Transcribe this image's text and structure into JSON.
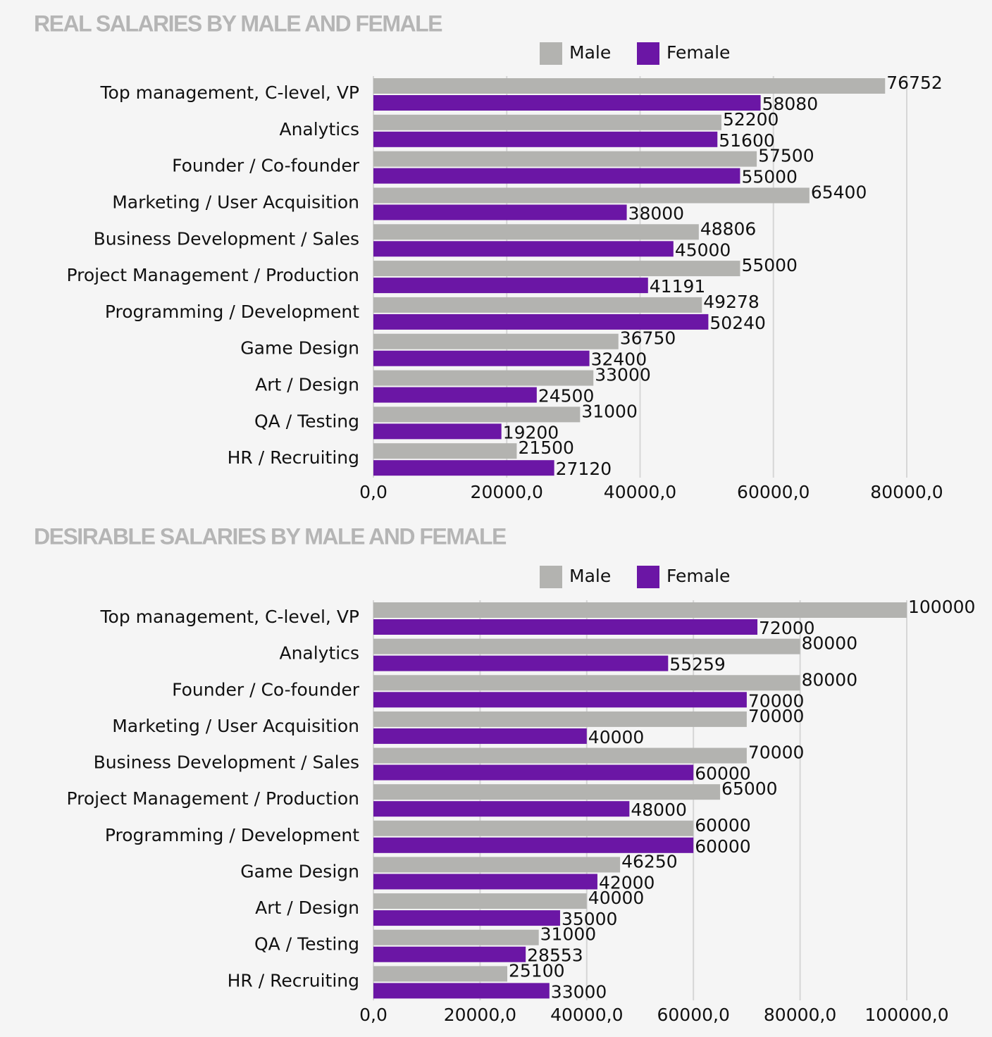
{
  "chart_data": [
    {
      "type": "bar",
      "orientation": "horizontal",
      "title": "REAL SALARIES BY MALE AND FEMALE",
      "categories": [
        "Top management, C-level, VP",
        "Analytics",
        "Founder / Co-founder",
        "Marketing / User Acquisition",
        "Business Development / Sales",
        "Project Management / Production",
        "Programming / Development",
        "Game Design",
        "Art / Design",
        "QA / Testing",
        "HR / Recruiting"
      ],
      "series": [
        {
          "name": "Male",
          "color": "#b3b3b0",
          "values": [
            76752,
            52200,
            57500,
            65400,
            48806,
            55000,
            49278,
            36750,
            33000,
            31000,
            21500
          ]
        },
        {
          "name": "Female",
          "color": "#6b16a5",
          "values": [
            58080,
            51600,
            55000,
            38000,
            45000,
            41191,
            50240,
            32400,
            24500,
            19200,
            27120
          ]
        }
      ],
      "xlim": [
        0,
        80000
      ],
      "xticks": [
        {
          "value": 0,
          "label": "0,0"
        },
        {
          "value": 20000,
          "label": "20000,0"
        },
        {
          "value": 40000,
          "label": "40000,0"
        },
        {
          "value": 60000,
          "label": "60000,0"
        },
        {
          "value": 80000,
          "label": "80000,0"
        }
      ],
      "grid": true,
      "legend": "top"
    },
    {
      "type": "bar",
      "orientation": "horizontal",
      "title": "DESIRABLE SALARIES BY MALE AND FEMALE",
      "categories": [
        "Top management, C-level, VP",
        "Analytics",
        "Founder / Co-founder",
        "Marketing / User Acquisition",
        "Business Development / Sales",
        "Project Management / Production",
        "Programming / Development",
        "Game Design",
        "Art / Design",
        "QA / Testing",
        "HR / Recruiting"
      ],
      "series": [
        {
          "name": "Male",
          "color": "#b3b3b0",
          "values": [
            100000,
            80000,
            80000,
            70000,
            70000,
            65000,
            60000,
            46250,
            40000,
            31000,
            25100
          ]
        },
        {
          "name": "Female",
          "color": "#6b16a5",
          "values": [
            72000,
            55259,
            70000,
            40000,
            60000,
            48000,
            60000,
            42000,
            35000,
            28553,
            33000
          ]
        }
      ],
      "xlim": [
        0,
        100000
      ],
      "xticks": [
        {
          "value": 0,
          "label": "0,0"
        },
        {
          "value": 20000,
          "label": "20000,0"
        },
        {
          "value": 40000,
          "label": "40000,0"
        },
        {
          "value": 60000,
          "label": "60000,0"
        },
        {
          "value": 80000,
          "label": "80000,0"
        },
        {
          "value": 100000,
          "label": "100000,0"
        }
      ],
      "grid": true,
      "legend": "top"
    }
  ]
}
